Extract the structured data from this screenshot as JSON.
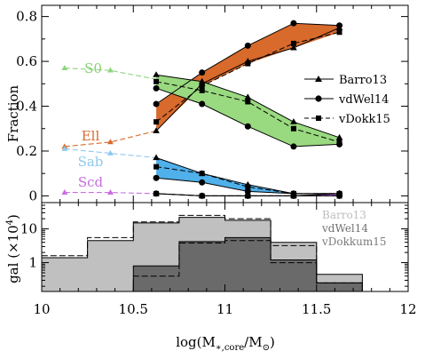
{
  "chart_data": [
    {
      "type": "line",
      "panel": "top",
      "ylabel": "Fraction",
      "xlim": [
        10,
        12
      ],
      "ylim": [
        -0.03,
        0.85
      ],
      "yticks": [
        0,
        0.2,
        0.4,
        0.6,
        0.8
      ],
      "ytick_labels": [
        "0",
        "0.2",
        "0.4",
        "0.6",
        "0.8"
      ],
      "legend": {
        "placement": "right",
        "entries": [
          {
            "label": "Barro13",
            "marker": "triangle",
            "dash": "solid"
          },
          {
            "label": "vdWel14",
            "marker": "circle",
            "dash": "solid"
          },
          {
            "label": "vDokk15",
            "marker": "square",
            "dash": "dashed"
          }
        ]
      },
      "x": [
        10.625,
        10.875,
        11.125,
        11.375,
        11.625
      ],
      "low_mass_trends": [
        {
          "name": "S0",
          "x": [
            10.125,
            10.375,
            10.625
          ],
          "values": [
            0.57,
            0.56,
            0.52
          ],
          "color": "#8fd47f"
        },
        {
          "name": "Ell",
          "x": [
            10.125,
            10.375,
            10.625
          ],
          "values": [
            0.22,
            0.24,
            0.29
          ],
          "color": "#d86a2c"
        },
        {
          "name": "Sab",
          "x": [
            10.125,
            10.375,
            10.625
          ],
          "values": [
            0.21,
            0.19,
            0.17
          ],
          "color": "#8ec9ee"
        },
        {
          "name": "Scd",
          "x": [
            10.125,
            10.375,
            10.625
          ],
          "values": [
            0.015,
            0.015,
            0.01
          ],
          "color": "#c76ee0"
        }
      ],
      "series": [
        {
          "name": "Ell",
          "color": "#d86a2c",
          "label_color": "#d86a2c",
          "Barro13": [
            0.29,
            0.5,
            0.6,
            0.66,
            0.75
          ],
          "vdWel14": [
            0.41,
            0.55,
            0.67,
            0.77,
            0.76
          ],
          "vDokk15": [
            0.33,
            0.49,
            0.59,
            0.68,
            0.73
          ]
        },
        {
          "name": "S0",
          "color": "#99d97f",
          "label_color": "#86cf73",
          "Barro13": [
            0.54,
            0.51,
            0.44,
            0.33,
            0.26
          ],
          "vdWel14": [
            0.48,
            0.41,
            0.31,
            0.22,
            0.23
          ],
          "vDokk15": [
            0.51,
            0.47,
            0.42,
            0.3,
            0.24
          ]
        },
        {
          "name": "Sab",
          "color": "#4fb0ea",
          "label_color": "#8ec9ee",
          "Barro13": [
            0.17,
            0.1,
            0.05,
            0.01,
            0.01
          ],
          "vdWel14": [
            0.08,
            0.06,
            0.02,
            0.01,
            0.01
          ],
          "vDokk15": [
            0.13,
            0.1,
            0.04,
            0.01,
            0.01
          ]
        },
        {
          "name": "Scd",
          "color": "#b35ad6",
          "label_color": "#c76ee0",
          "Barro13": [
            0.01,
            0.0,
            0.0,
            0.0,
            0.01
          ],
          "vdWel14": [
            0.01,
            0.0,
            0.0,
            0.0,
            0.0
          ],
          "vDokk15": [
            0.01,
            0.0,
            0.0,
            0.0,
            0.0
          ]
        }
      ]
    },
    {
      "type": "histogram",
      "panel": "bottom",
      "ylabel": "gal (×10",
      "ylabel_sup": "4",
      "ylabel_close": ")",
      "xlabel_main": "log(M",
      "xlabel_sub": "∗,core",
      "xlabel_mid": "/M",
      "xlabel_sub2": "⊙",
      "xlabel_close": ")",
      "xlim": [
        10,
        12
      ],
      "yscale": "log",
      "ylim": [
        0.14,
        60
      ],
      "yticks": [
        1,
        10
      ],
      "ytick_labels": [
        "1",
        "10"
      ],
      "xticks": [
        10,
        10.5,
        11,
        11.5,
        12
      ],
      "xtick_labels": [
        "10",
        "10.5",
        "11",
        "11.5",
        "12"
      ],
      "legend": {
        "placement": "top-right",
        "entries": [
          {
            "label": "Barro13",
            "color": "#bdbdbd"
          },
          {
            "label": "vdWel14",
            "color": "#707070"
          },
          {
            "label": "vDokkum15",
            "color": "#7a7a7a"
          }
        ]
      },
      "bin_edges": [
        10.0,
        10.25,
        10.5,
        10.75,
        11.0,
        11.25,
        11.5,
        11.75
      ],
      "series": [
        {
          "name": "Barro13",
          "fill": "#c0c0c0",
          "values": [
            1.4,
            4.5,
            15,
            22,
            18,
            4,
            0.45
          ]
        },
        {
          "name": "vdWel14",
          "fill": "#6a6a6a",
          "values": [
            0.14,
            0.14,
            0.8,
            4.2,
            5.5,
            1.2,
            0.25
          ]
        },
        {
          "name": "vDokkum15",
          "fill": "none",
          "dash": "dashed",
          "values": [
            1.6,
            5.5,
            16,
            25,
            20,
            3.2,
            0.25
          ]
        },
        {
          "name": "vDokkum15-low",
          "fill": "none",
          "dash": "dashed",
          "values": [
            0.14,
            0.14,
            0.4,
            3.8,
            4.5,
            1.0,
            0.25
          ]
        }
      ]
    }
  ]
}
